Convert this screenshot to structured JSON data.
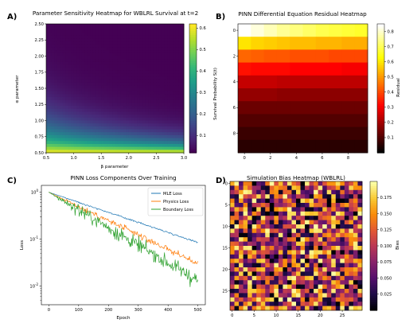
{
  "chart_data": [
    {
      "type": "heatmap",
      "panel": "A)",
      "title": "Parameter Sensitivity Heatmap for WBLRL Survival at t=2",
      "xlabel": "β parameter",
      "ylabel": "α parameter",
      "xlim": [
        0.5,
        3.0
      ],
      "ylim": [
        0.5,
        2.5
      ],
      "x_ticks": [
        "0.5",
        "1.0",
        "1.5",
        "2.0",
        "2.5",
        "3.0"
      ],
      "y_ticks": [
        "0.50",
        "0.75",
        "1.00",
        "1.25",
        "1.50",
        "1.75",
        "2.00",
        "2.25",
        "2.50"
      ],
      "colormap": "viridis",
      "colorbar": {
        "label": "Survival Probability S(t)",
        "range": [
          0.02,
          0.62
        ],
        "ticks": [
          "0.1",
          "0.2",
          "0.3",
          "0.4",
          "0.5",
          "0.6"
        ]
      },
      "values_description": "S(t) highest (~0.6) at small α and small β, decays toward ~0.02 as α and β increase"
    },
    {
      "type": "heatmap",
      "panel": "B)",
      "title": "PINN Differential Equation Residual Heatmap",
      "x_ticks": [
        "0",
        "2",
        "4",
        "6",
        "8"
      ],
      "y_ticks": [
        "0",
        "2",
        "4",
        "6",
        "8"
      ],
      "colormap": "hot",
      "colorbar": {
        "label": "Residual",
        "range": [
          0,
          0.85
        ],
        "ticks": [
          "0.1",
          "0.2",
          "0.3",
          "0.4",
          "0.5",
          "0.6",
          "0.7",
          "0.8"
        ]
      },
      "rows": [
        [
          0.86,
          0.82,
          0.79,
          0.76,
          0.74,
          0.72,
          0.7,
          0.69,
          0.68,
          0.67
        ],
        [
          0.6,
          0.58,
          0.57,
          0.56,
          0.55,
          0.55,
          0.54,
          0.54,
          0.53,
          0.53
        ],
        [
          0.44,
          0.43,
          0.42,
          0.42,
          0.41,
          0.41,
          0.41,
          0.4,
          0.4,
          0.4
        ],
        [
          0.33,
          0.32,
          0.32,
          0.32,
          0.31,
          0.31,
          0.31,
          0.31,
          0.3,
          0.3
        ],
        [
          0.24,
          0.24,
          0.24,
          0.23,
          0.23,
          0.23,
          0.23,
          0.23,
          0.23,
          0.23
        ],
        [
          0.18,
          0.18,
          0.18,
          0.17,
          0.17,
          0.17,
          0.17,
          0.17,
          0.17,
          0.17
        ],
        [
          0.13,
          0.13,
          0.13,
          0.13,
          0.13,
          0.13,
          0.13,
          0.13,
          0.13,
          0.13
        ],
        [
          0.1,
          0.1,
          0.1,
          0.1,
          0.1,
          0.1,
          0.1,
          0.1,
          0.1,
          0.1
        ],
        [
          0.07,
          0.07,
          0.07,
          0.07,
          0.07,
          0.07,
          0.07,
          0.07,
          0.07,
          0.07
        ],
        [
          0.05,
          0.05,
          0.05,
          0.05,
          0.05,
          0.05,
          0.05,
          0.05,
          0.05,
          0.05
        ]
      ]
    },
    {
      "type": "line",
      "panel": "C)",
      "title": "PINN Loss Components Over Training",
      "xlabel": "Epoch",
      "ylabel": "Loss",
      "xlim": [
        -25,
        525
      ],
      "ylim": [
        0.004,
        1.4
      ],
      "yscale": "log",
      "x_ticks": [
        "0",
        "100",
        "200",
        "300",
        "400",
        "500"
      ],
      "y_ticks": [
        "10^0",
        "10^-1",
        "10^-2"
      ],
      "legend": "top-right",
      "series": [
        {
          "name": "MLE Loss",
          "color": "#1f77b4",
          "start": 1.0,
          "end": 0.085,
          "noise": 0.03
        },
        {
          "name": "Physics Loss",
          "color": "#ff7f0e",
          "start": 1.0,
          "end": 0.03,
          "noise": 0.12
        },
        {
          "name": "Boundary Loss",
          "color": "#2ca02c",
          "start": 1.0,
          "end": 0.013,
          "noise": 0.28
        }
      ]
    },
    {
      "type": "heatmap",
      "panel": "D)",
      "title": "Simulation Bias Heatmap (WBLRL)",
      "x_ticks": [
        "0",
        "5",
        "10",
        "15",
        "20",
        "25"
      ],
      "y_ticks": [
        "0",
        "5",
        "10",
        "15",
        "20",
        "25"
      ],
      "colormap": "inferno",
      "grid_size": 30,
      "colorbar": {
        "label": "Bias",
        "range": [
          0.0,
          0.2
        ],
        "ticks": [
          "0.025",
          "0.050",
          "0.075",
          "0.100",
          "0.125",
          "0.150",
          "0.175"
        ]
      }
    }
  ]
}
